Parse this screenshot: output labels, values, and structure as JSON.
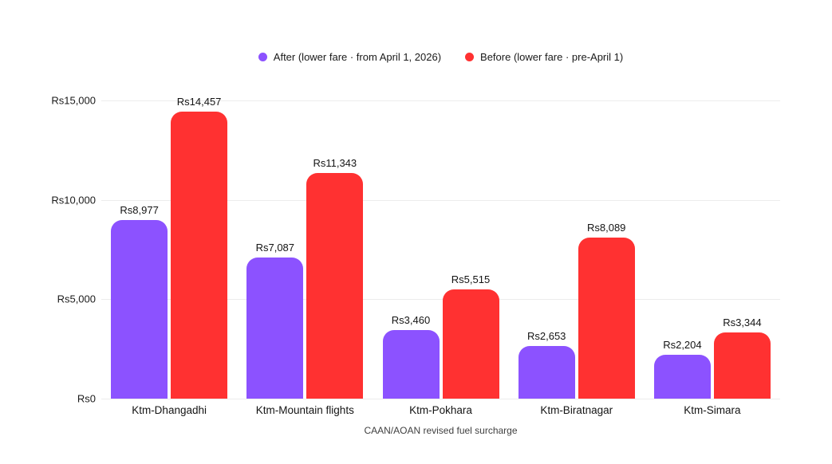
{
  "legend": {
    "items": [
      {
        "label": "After (lower fare · from April 1, 2026)",
        "color": "#8C52FF"
      },
      {
        "label": "Before (lower fare · pre-April 1)",
        "color": "#FF3131"
      }
    ]
  },
  "chart_data": {
    "type": "bar",
    "categories": [
      "Ktm-Dhangadhi",
      "Ktm-Mountain flights",
      "Ktm-Pokhara",
      "Ktm-Biratnagar",
      "Ktm-Simara"
    ],
    "series": [
      {
        "name": "After (lower fare · from April 1, 2026)",
        "color": "#8C52FF",
        "values": [
          8977,
          7087,
          3460,
          2653,
          2204
        ],
        "value_labels": [
          "Rs8,977",
          "Rs7,087",
          "Rs3,460",
          "Rs2,653",
          "Rs2,204"
        ]
      },
      {
        "name": "Before (lower fare · pre-April 1)",
        "color": "#FF3131",
        "values": [
          14457,
          11343,
          5515,
          8089,
          3344
        ],
        "value_labels": [
          "Rs14,457",
          "Rs11,343",
          "Rs5,515",
          "Rs8,089",
          "Rs3,344"
        ]
      }
    ],
    "title": "",
    "xlabel": "CAAN/AOAN revised fuel surcharge",
    "ylabel": "",
    "ylim": [
      0,
      15000
    ],
    "yticks": [
      0,
      5000,
      10000,
      15000
    ],
    "ytick_labels": [
      "Rs0",
      "Rs5,000",
      "Rs10,000",
      "Rs15,000"
    ],
    "grid": true,
    "legend_position": "top-center",
    "colors": {
      "gridline": "#ececec",
      "label_text": "#141414",
      "axis_title_text": "#3f3f3f"
    }
  }
}
